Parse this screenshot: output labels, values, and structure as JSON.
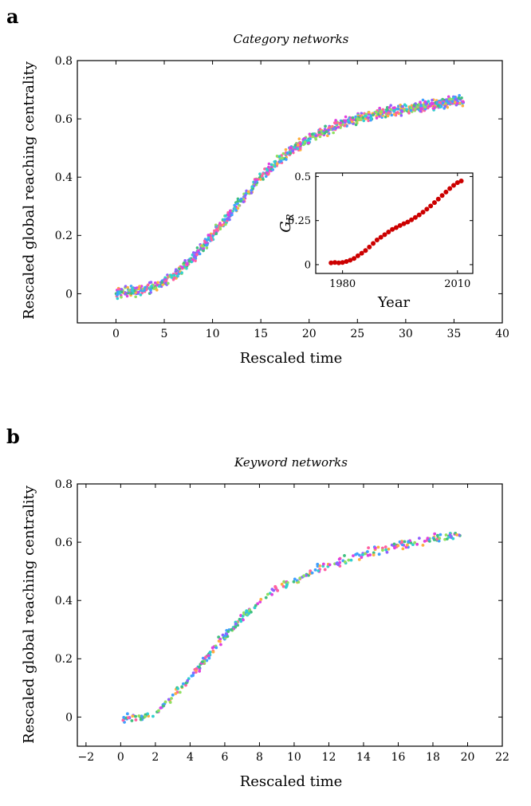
{
  "chart_data": [
    {
      "id": "a",
      "panel_label": "a",
      "type": "scatter",
      "title": "Category networks",
      "xlabel": "Rescaled time",
      "ylabel": "Rescaled global reaching centrality",
      "xlim": [
        -4,
        40
      ],
      "ylim": [
        -0.1,
        0.8
      ],
      "xticks": [
        0,
        5,
        10,
        15,
        20,
        25,
        30,
        35,
        40
      ],
      "yticks": [
        0,
        0.2,
        0.4,
        0.6,
        0.8
      ],
      "grid": false,
      "legend": "none",
      "series_colors": [
        "#e040e0",
        "#40a0ff",
        "#30d0d0",
        "#90e060",
        "#ffb040",
        "#9060ff",
        "#40c080",
        "#ff60a0"
      ],
      "trend": {
        "x": [
          0,
          1,
          2,
          3,
          4,
          5,
          6,
          7,
          8,
          9,
          10,
          11,
          12,
          13,
          14,
          15,
          16,
          17,
          18,
          19,
          20,
          21,
          22,
          23,
          24,
          25,
          26,
          27,
          28,
          29,
          30,
          31,
          32,
          33,
          34,
          35,
          36
        ],
        "y": [
          0.0,
          0.005,
          0.01,
          0.015,
          0.025,
          0.04,
          0.06,
          0.09,
          0.125,
          0.16,
          0.2,
          0.24,
          0.28,
          0.32,
          0.36,
          0.4,
          0.43,
          0.46,
          0.49,
          0.51,
          0.53,
          0.55,
          0.565,
          0.58,
          0.59,
          0.6,
          0.61,
          0.62,
          0.625,
          0.63,
          0.635,
          0.64,
          0.645,
          0.65,
          0.655,
          0.66,
          0.66
        ],
        "spread": 0.012,
        "points_per_unit": 30
      },
      "inset": {
        "type": "scatter",
        "xlabel": "Year",
        "ylabel": "G_R",
        "xlim": [
          1973,
          2014
        ],
        "ylim": [
          -0.05,
          0.52
        ],
        "xticks": [
          1980,
          2010
        ],
        "yticks": [
          0,
          0.25,
          0.5
        ],
        "color": "#cc0000",
        "x": [
          1977,
          1978,
          1979,
          1980,
          1981,
          1982,
          1983,
          1984,
          1985,
          1986,
          1987,
          1988,
          1989,
          1990,
          1991,
          1992,
          1993,
          1994,
          1995,
          1996,
          1997,
          1998,
          1999,
          2000,
          2001,
          2002,
          2003,
          2004,
          2005,
          2006,
          2007,
          2008,
          2009,
          2010,
          2011
        ],
        "y": [
          0.01,
          0.012,
          0.01,
          0.012,
          0.018,
          0.025,
          0.035,
          0.05,
          0.065,
          0.08,
          0.1,
          0.12,
          0.14,
          0.155,
          0.17,
          0.185,
          0.2,
          0.21,
          0.222,
          0.232,
          0.242,
          0.254,
          0.268,
          0.282,
          0.298,
          0.315,
          0.333,
          0.352,
          0.372,
          0.392,
          0.412,
          0.432,
          0.45,
          0.465,
          0.475
        ]
      }
    },
    {
      "id": "b",
      "panel_label": "b",
      "type": "scatter",
      "title": "Keyword networks",
      "xlabel": "Rescaled time",
      "ylabel": "Rescaled global reaching centrality",
      "xlim": [
        -2.5,
        22
      ],
      "ylim": [
        -0.1,
        0.8
      ],
      "xticks": [
        -2,
        0,
        2,
        4,
        6,
        8,
        10,
        12,
        14,
        16,
        18,
        20,
        22
      ],
      "yticks": [
        0,
        0.2,
        0.4,
        0.6,
        0.8
      ],
      "grid": false,
      "legend": "none",
      "series_colors": [
        "#e040e0",
        "#40a0ff",
        "#30d0d0",
        "#90e060",
        "#ffb040",
        "#9060ff",
        "#40c080",
        "#ff60a0"
      ],
      "trend": {
        "x": [
          0,
          0.5,
          1,
          1.5,
          2,
          2.5,
          3,
          3.5,
          4,
          4.5,
          5,
          5.5,
          6,
          6.5,
          7,
          7.5,
          8,
          8.5,
          9,
          9.5,
          10,
          11,
          12,
          13,
          14,
          15,
          16,
          17,
          18,
          19,
          19.6
        ],
        "y": [
          0.0,
          -0.005,
          -0.005,
          0.005,
          0.02,
          0.04,
          0.07,
          0.1,
          0.13,
          0.17,
          0.21,
          0.245,
          0.28,
          0.31,
          0.34,
          0.37,
          0.4,
          0.42,
          0.44,
          0.455,
          0.47,
          0.5,
          0.52,
          0.54,
          0.56,
          0.575,
          0.59,
          0.6,
          0.61,
          0.62,
          0.625
        ],
        "spread": 0.01,
        "points_per_unit": 16
      }
    }
  ]
}
